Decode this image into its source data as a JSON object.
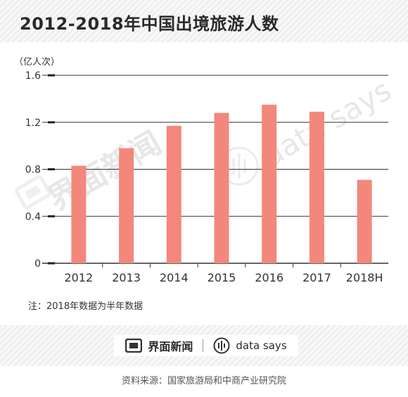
{
  "title": "2012-2018年中国出境旅游人数",
  "note": "注：2018年数据为半年数据",
  "source": "资料来源：国家旅游局和中商产业研究院",
  "brand": {
    "name_cn": "界面新闻",
    "name_en": "data says"
  },
  "watermark": {
    "cn": "界面新闻",
    "en": "data says"
  },
  "colors": {
    "bar": "#f4877c",
    "grid": "#333333",
    "text": "#2a2a2a"
  },
  "chart_data": {
    "type": "bar",
    "title": "2012-2018年中国出境旅游人数",
    "ylabel": "（亿人次）",
    "xlabel": "",
    "categories": [
      "2012",
      "2013",
      "2014",
      "2015",
      "2016",
      "2017",
      "2018H"
    ],
    "values": [
      0.83,
      0.98,
      1.17,
      1.28,
      1.35,
      1.29,
      0.71
    ],
    "ylim": [
      0,
      1.6
    ],
    "yticks": [
      "0",
      "0.4",
      "0.8",
      "1.2",
      "1.6"
    ],
    "grid": true,
    "legend": "none"
  }
}
